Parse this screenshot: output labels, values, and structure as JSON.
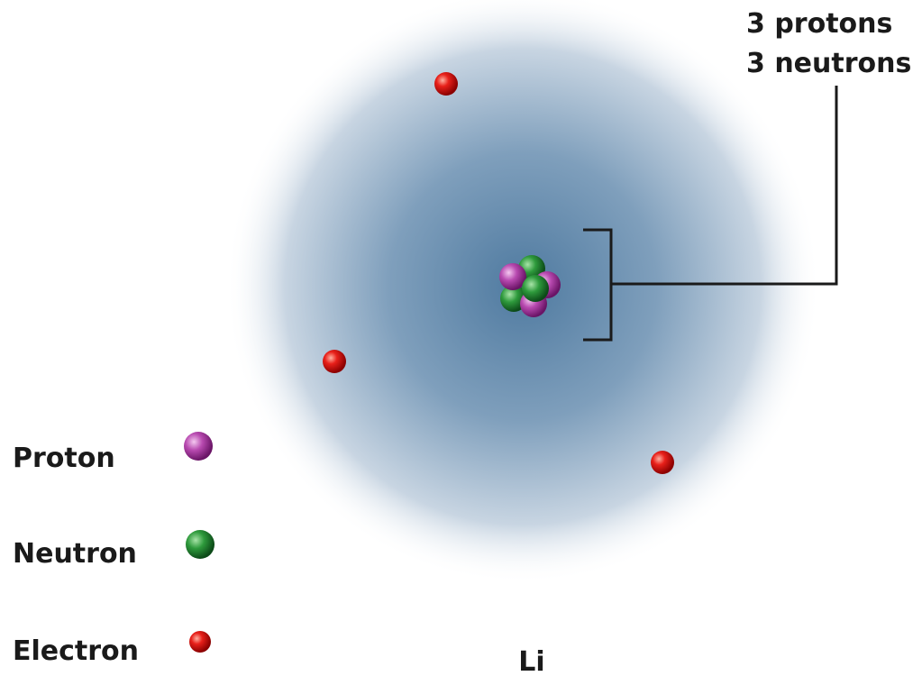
{
  "nucleus_label": {
    "lines": [
      "3 protons",
      "3 neutrons"
    ]
  },
  "legend": {
    "items": [
      "Proton",
      "Neutron",
      "Electron"
    ]
  },
  "element": "Li"
}
